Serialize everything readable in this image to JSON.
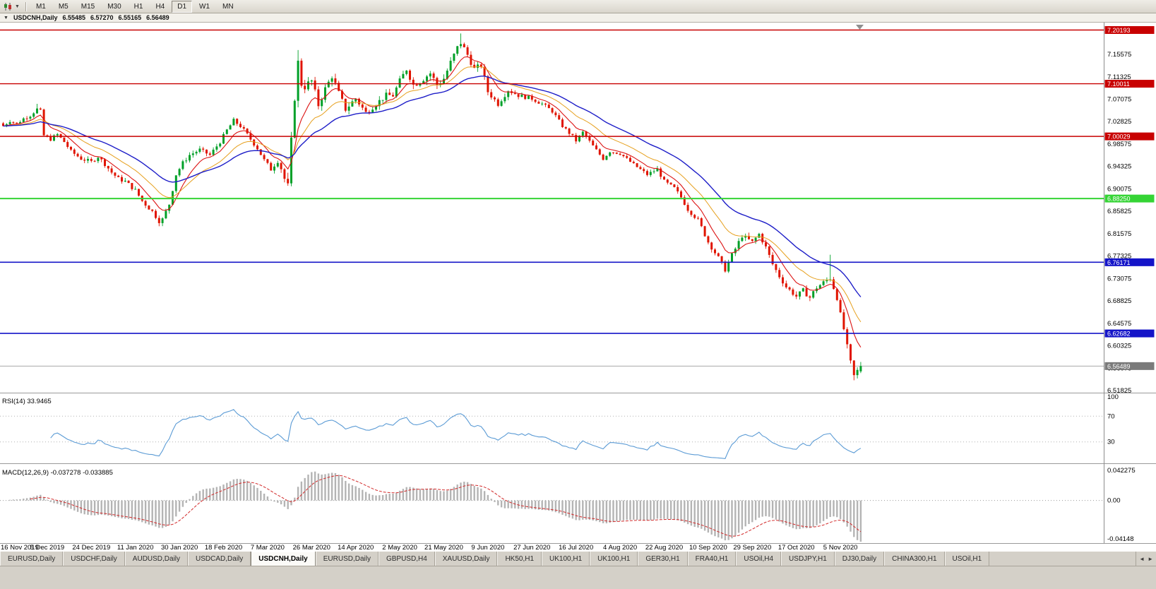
{
  "toolbar": {
    "timeframes": [
      "M1",
      "M5",
      "M15",
      "M30",
      "H1",
      "H4",
      "D1",
      "W1",
      "MN"
    ],
    "active_timeframe": "D1"
  },
  "chart": {
    "title": "USDCNH,Daily",
    "collapse_icon": "▼",
    "ohlc": {
      "open": "6.55485",
      "high": "6.57270",
      "low": "6.55165",
      "close": "6.56489"
    },
    "price_scale_labels": [
      "7.15575",
      "7.11325",
      "7.07075",
      "7.02825",
      "6.98575",
      "6.94325",
      "6.90075",
      "6.85825",
      "6.81575",
      "6.77325",
      "6.73075",
      "6.68825",
      "6.64575",
      "6.60325",
      "6.56075",
      "6.51825"
    ],
    "date_labels": [
      "16 Nov 2019",
      "5 Dec 2019",
      "24 Dec 2019",
      "11 Jan 2020",
      "30 Jan 2020",
      "18 Feb 2020",
      "7 Mar 2020",
      "26 Mar 2020",
      "14 Apr 2020",
      "2 May 2020",
      "21 May 2020",
      "9 Jun 2020",
      "27 Jun 2020",
      "16 Jul 2020",
      "4 Aug 2020",
      "22 Aug 2020",
      "10 Sep 2020",
      "29 Sep 2020",
      "17 Oct 2020",
      "5 Nov 2020"
    ],
    "hlines": [
      {
        "price": 7.20193,
        "label": "7.20193",
        "color": "#c80000",
        "width": 1.4
      },
      {
        "price": 7.10011,
        "label": "7.10011",
        "color": "#c80000",
        "width": 1.4
      },
      {
        "price": 7.00029,
        "label": "7.00029",
        "color": "#c80000",
        "width": 1.4
      },
      {
        "price": 6.8825,
        "label": "6.88250",
        "color": "#35d435",
        "width": 2
      },
      {
        "price": 6.76171,
        "label": "6.76171",
        "color": "#1414c8",
        "width": 1.6
      },
      {
        "price": 6.62682,
        "label": "6.62682",
        "color": "#1414c8",
        "width": 1.6
      }
    ],
    "bid": {
      "price": 6.56489,
      "label": "6.56489",
      "color": "#7a7a7a"
    },
    "colors": {
      "up": "#00a028",
      "down": "#e01400",
      "ma_fast": "#dc1414",
      "ma_mid": "#e6a01e",
      "ma_slow": "#1e1ec8",
      "rsi": "#5b9bd5",
      "macd_bar": "#b4b4b4",
      "macd_signal": "#d22a2a"
    }
  },
  "indicators": {
    "rsi": {
      "name": "RSI(14)",
      "value": "33.9465",
      "scale": [
        "100",
        "70",
        "30"
      ],
      "levels": [
        70,
        30
      ]
    },
    "macd": {
      "name": "MACD(12,26,9)",
      "value": "-0.037278 -0.033885",
      "scale_top": "0.042275",
      "scale_zero": "0.00",
      "scale_bottom": "-0.04148"
    }
  },
  "tabs": {
    "active_index": 4,
    "scroll_left_icon": "◄",
    "scroll_right_icon": "►",
    "items": [
      "EURUSD,Daily",
      "USDCHF,Daily",
      "AUDUSD,Daily",
      "USDCAD,Daily",
      "USDCNH,Daily",
      "EURUSD,Daily",
      "GBPUSD,H4",
      "XAUUSD,Daily",
      "HK50,H1",
      "UK100,H1",
      "UK100,H1",
      "GER30,H1",
      "FRA40,H1",
      "USOil,H4",
      "USDJPY,H1",
      "DJ30,Daily",
      "CHINA300,H1",
      "USOil,H1"
    ]
  },
  "chart_data": {
    "type": "candlestick",
    "symbol": "USDCNH",
    "timeframe": "Daily",
    "n_candles": 254,
    "ylim": [
      6.5145,
      7.216
    ],
    "support_resistance_levels": [
      7.20193,
      7.10011,
      7.00029,
      6.8825,
      6.76171,
      6.62682
    ],
    "last_price": 6.56489,
    "last_ohlc": [
      6.55485,
      6.5727,
      6.55165,
      6.56489
    ],
    "ma_periods": [
      8,
      18,
      34
    ],
    "rsi_period": 14,
    "rsi_last": 33.9465,
    "macd_params": [
      12,
      26,
      9
    ],
    "macd_last": [
      -0.037278,
      -0.033885
    ],
    "close_path": [
      [
        0,
        7.02
      ],
      [
        2,
        7.03
      ],
      [
        4,
        7.024
      ],
      [
        6,
        7.034
      ],
      [
        8,
        7.04
      ],
      [
        10,
        7.052
      ],
      [
        11,
        7.048
      ],
      [
        12,
        7.002
      ],
      [
        14,
        6.995
      ],
      [
        16,
        7.004
      ],
      [
        18,
        6.99
      ],
      [
        20,
        6.972
      ],
      [
        23,
        6.958
      ],
      [
        26,
        6.952
      ],
      [
        28,
        6.962
      ],
      [
        30,
        6.948
      ],
      [
        32,
        6.932
      ],
      [
        34,
        6.92
      ],
      [
        36,
        6.915
      ],
      [
        39,
        6.898
      ],
      [
        41,
        6.878
      ],
      [
        44,
        6.858
      ],
      [
        46,
        6.84
      ],
      [
        47,
        6.843
      ],
      [
        49,
        6.872
      ],
      [
        51,
        6.928
      ],
      [
        53,
        6.95
      ],
      [
        55,
        6.965
      ],
      [
        58,
        6.975
      ],
      [
        61,
        6.965
      ],
      [
        64,
        6.99
      ],
      [
        66,
        7.012
      ],
      [
        68,
        7.03
      ],
      [
        70,
        7.02
      ],
      [
        73,
        6.995
      ],
      [
        75,
        6.978
      ],
      [
        77,
        6.955
      ],
      [
        79,
        6.938
      ],
      [
        81,
        6.955
      ],
      [
        82,
        6.94
      ],
      [
        83,
        6.92
      ],
      [
        84,
        6.905
      ],
      [
        85,
        6.99
      ],
      [
        86,
        7.075
      ],
      [
        87,
        7.14
      ],
      [
        88,
        7.1
      ],
      [
        89,
        7.095
      ],
      [
        91,
        7.105
      ],
      [
        93,
        7.06
      ],
      [
        95,
        7.09
      ],
      [
        97,
        7.115
      ],
      [
        99,
        7.082
      ],
      [
        101,
        7.052
      ],
      [
        104,
        7.072
      ],
      [
        107,
        7.045
      ],
      [
        110,
        7.062
      ],
      [
        113,
        7.078
      ],
      [
        115,
        7.078
      ],
      [
        117,
        7.105
      ],
      [
        119,
        7.128
      ],
      [
        121,
        7.098
      ],
      [
        123,
        7.105
      ],
      [
        126,
        7.12
      ],
      [
        128,
        7.098
      ],
      [
        130,
        7.11
      ],
      [
        132,
        7.14
      ],
      [
        134,
        7.168
      ],
      [
        135,
        7.178
      ],
      [
        137,
        7.155
      ],
      [
        139,
        7.128
      ],
      [
        141,
        7.135
      ],
      [
        143,
        7.085
      ],
      [
        146,
        7.062
      ],
      [
        149,
        7.088
      ],
      [
        152,
        7.078
      ],
      [
        156,
        7.072
      ],
      [
        159,
        7.062
      ],
      [
        162,
        7.048
      ],
      [
        165,
        7.02
      ],
      [
        168,
        7.0
      ],
      [
        169,
        6.992
      ],
      [
        171,
        7.008
      ],
      [
        174,
        6.982
      ],
      [
        177,
        6.958
      ],
      [
        179,
        6.972
      ],
      [
        182,
        6.968
      ],
      [
        186,
        6.947
      ],
      [
        190,
        6.928
      ],
      [
        193,
        6.938
      ],
      [
        195,
        6.915
      ],
      [
        198,
        6.902
      ],
      [
        200,
        6.885
      ],
      [
        202,
        6.862
      ],
      [
        205,
        6.842
      ],
      [
        208,
        6.8
      ],
      [
        211,
        6.77
      ],
      [
        213,
        6.748
      ],
      [
        215,
        6.775
      ],
      [
        218,
        6.812
      ],
      [
        221,
        6.8
      ],
      [
        223,
        6.815
      ],
      [
        225,
        6.79
      ],
      [
        227,
        6.758
      ],
      [
        229,
        6.735
      ],
      [
        231,
        6.715
      ],
      [
        234,
        6.697
      ],
      [
        236,
        6.708
      ],
      [
        238,
        6.695
      ],
      [
        240,
        6.714
      ],
      [
        242,
        6.723
      ],
      [
        244,
        6.732
      ],
      [
        246,
        6.695
      ],
      [
        247,
        6.662
      ],
      [
        248,
        6.635
      ],
      [
        249,
        6.601
      ],
      [
        250,
        6.571
      ],
      [
        251,
        6.546
      ],
      [
        252,
        6.556
      ],
      [
        253,
        6.56489
      ]
    ],
    "volatility_path": [
      [
        0,
        0.005
      ],
      [
        20,
        0.006
      ],
      [
        45,
        0.007
      ],
      [
        60,
        0.006
      ],
      [
        80,
        0.0075
      ],
      [
        85,
        0.015
      ],
      [
        90,
        0.013
      ],
      [
        100,
        0.01
      ],
      [
        112,
        0.0085
      ],
      [
        120,
        0.01
      ],
      [
        133,
        0.011
      ],
      [
        140,
        0.009
      ],
      [
        150,
        0.007
      ],
      [
        165,
        0.0055
      ],
      [
        185,
        0.005
      ],
      [
        205,
        0.0065
      ],
      [
        215,
        0.0075
      ],
      [
        230,
        0.007
      ],
      [
        244,
        0.0085
      ],
      [
        250,
        0.009
      ],
      [
        253,
        0.007
      ]
    ],
    "wick_overrides": {
      "10": {
        "high": 7.062
      },
      "46": {
        "low": 6.83
      },
      "87": {
        "high": 7.164
      },
      "135": {
        "high": 7.1955
      },
      "213": {
        "low": 6.742
      },
      "244": {
        "high": 6.776
      },
      "251": {
        "low": 6.538
      }
    }
  }
}
